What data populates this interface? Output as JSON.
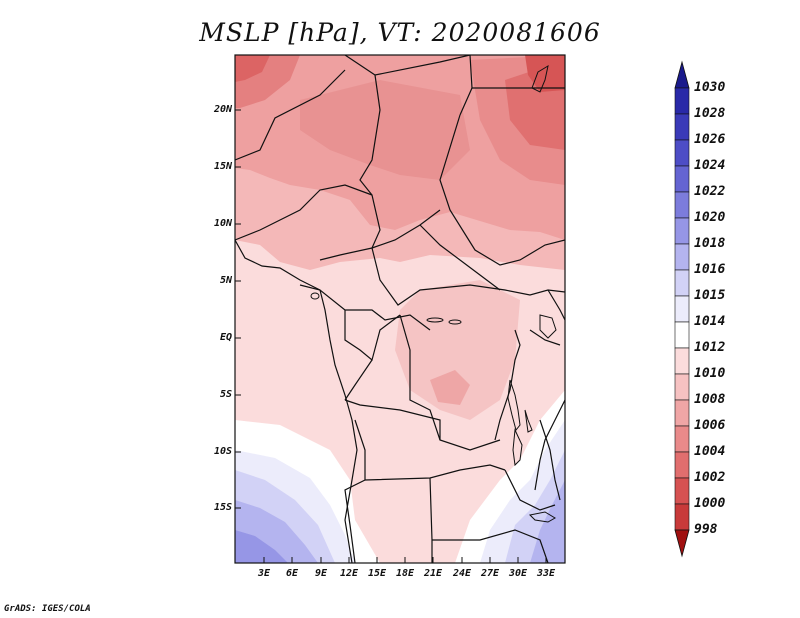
{
  "title": "MSLP [hPa], VT: 2020081606",
  "credit": "GrADS: IGES/COLA",
  "lat_labels": [
    "20N",
    "15N",
    "10N",
    "5N",
    "EQ",
    "5S",
    "10S",
    "15S"
  ],
  "lon_labels": [
    "3E",
    "6E",
    "9E",
    "12E",
    "15E",
    "18E",
    "21E",
    "24E",
    "27E",
    "30E",
    "33E"
  ],
  "colorbar": {
    "levels": [
      "1030",
      "1028",
      "1026",
      "1024",
      "1022",
      "1020",
      "1018",
      "1016",
      "1015",
      "1014",
      "1012",
      "1010",
      "1008",
      "1006",
      "1004",
      "1002",
      "1000",
      "998"
    ],
    "colors": [
      "#1a1a8c",
      "#2929a8",
      "#3a3ab8",
      "#4d4dc6",
      "#6464d2",
      "#7c7cdc",
      "#9696e6",
      "#b4b4ef",
      "#d2d2f6",
      "#ececfb",
      "#ffffff",
      "#fbdcdc",
      "#f6c2c2",
      "#f0a6a6",
      "#e98a8a",
      "#e16e6e",
      "#d65252",
      "#c83a3a",
      "#b42424",
      "#a01010"
    ]
  }
}
